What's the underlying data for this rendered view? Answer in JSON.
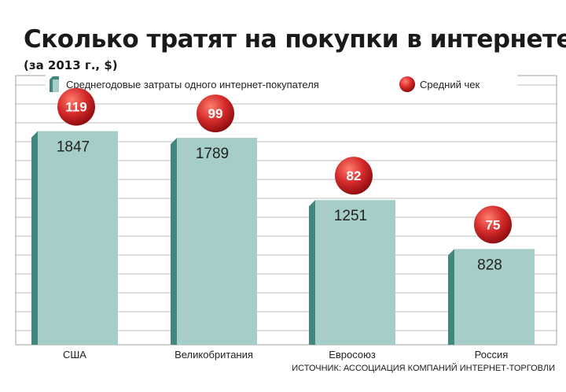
{
  "title": "Сколько тратят на покупки в интернете",
  "subtitle": "(за 2013 г., $)",
  "source": "ИСТОЧНИК: АССОЦИАЦИЯ КОМПАНИЙ ИНТЕРНЕТ-ТОРГОВЛИ",
  "colors": {
    "bar_face": "#a7cdc9",
    "bar_side": "#3f877f",
    "bubble": "#d42a2a",
    "grid": "#bfbfbf",
    "frame": "#a0a0a0"
  },
  "chart_data": {
    "type": "bar",
    "categories": [
      "США",
      "Великобритания",
      "Евросоюз",
      "Россия"
    ],
    "series": [
      {
        "name": "Среднегодовые затраты одного интернет-покупателя",
        "values": [
          1847,
          1789,
          1251,
          828
        ]
      },
      {
        "name": "Средний чек",
        "values": [
          119,
          99,
          82,
          75
        ]
      }
    ],
    "ylim": [
      0,
      2300
    ],
    "grid": true,
    "legend": "top"
  }
}
